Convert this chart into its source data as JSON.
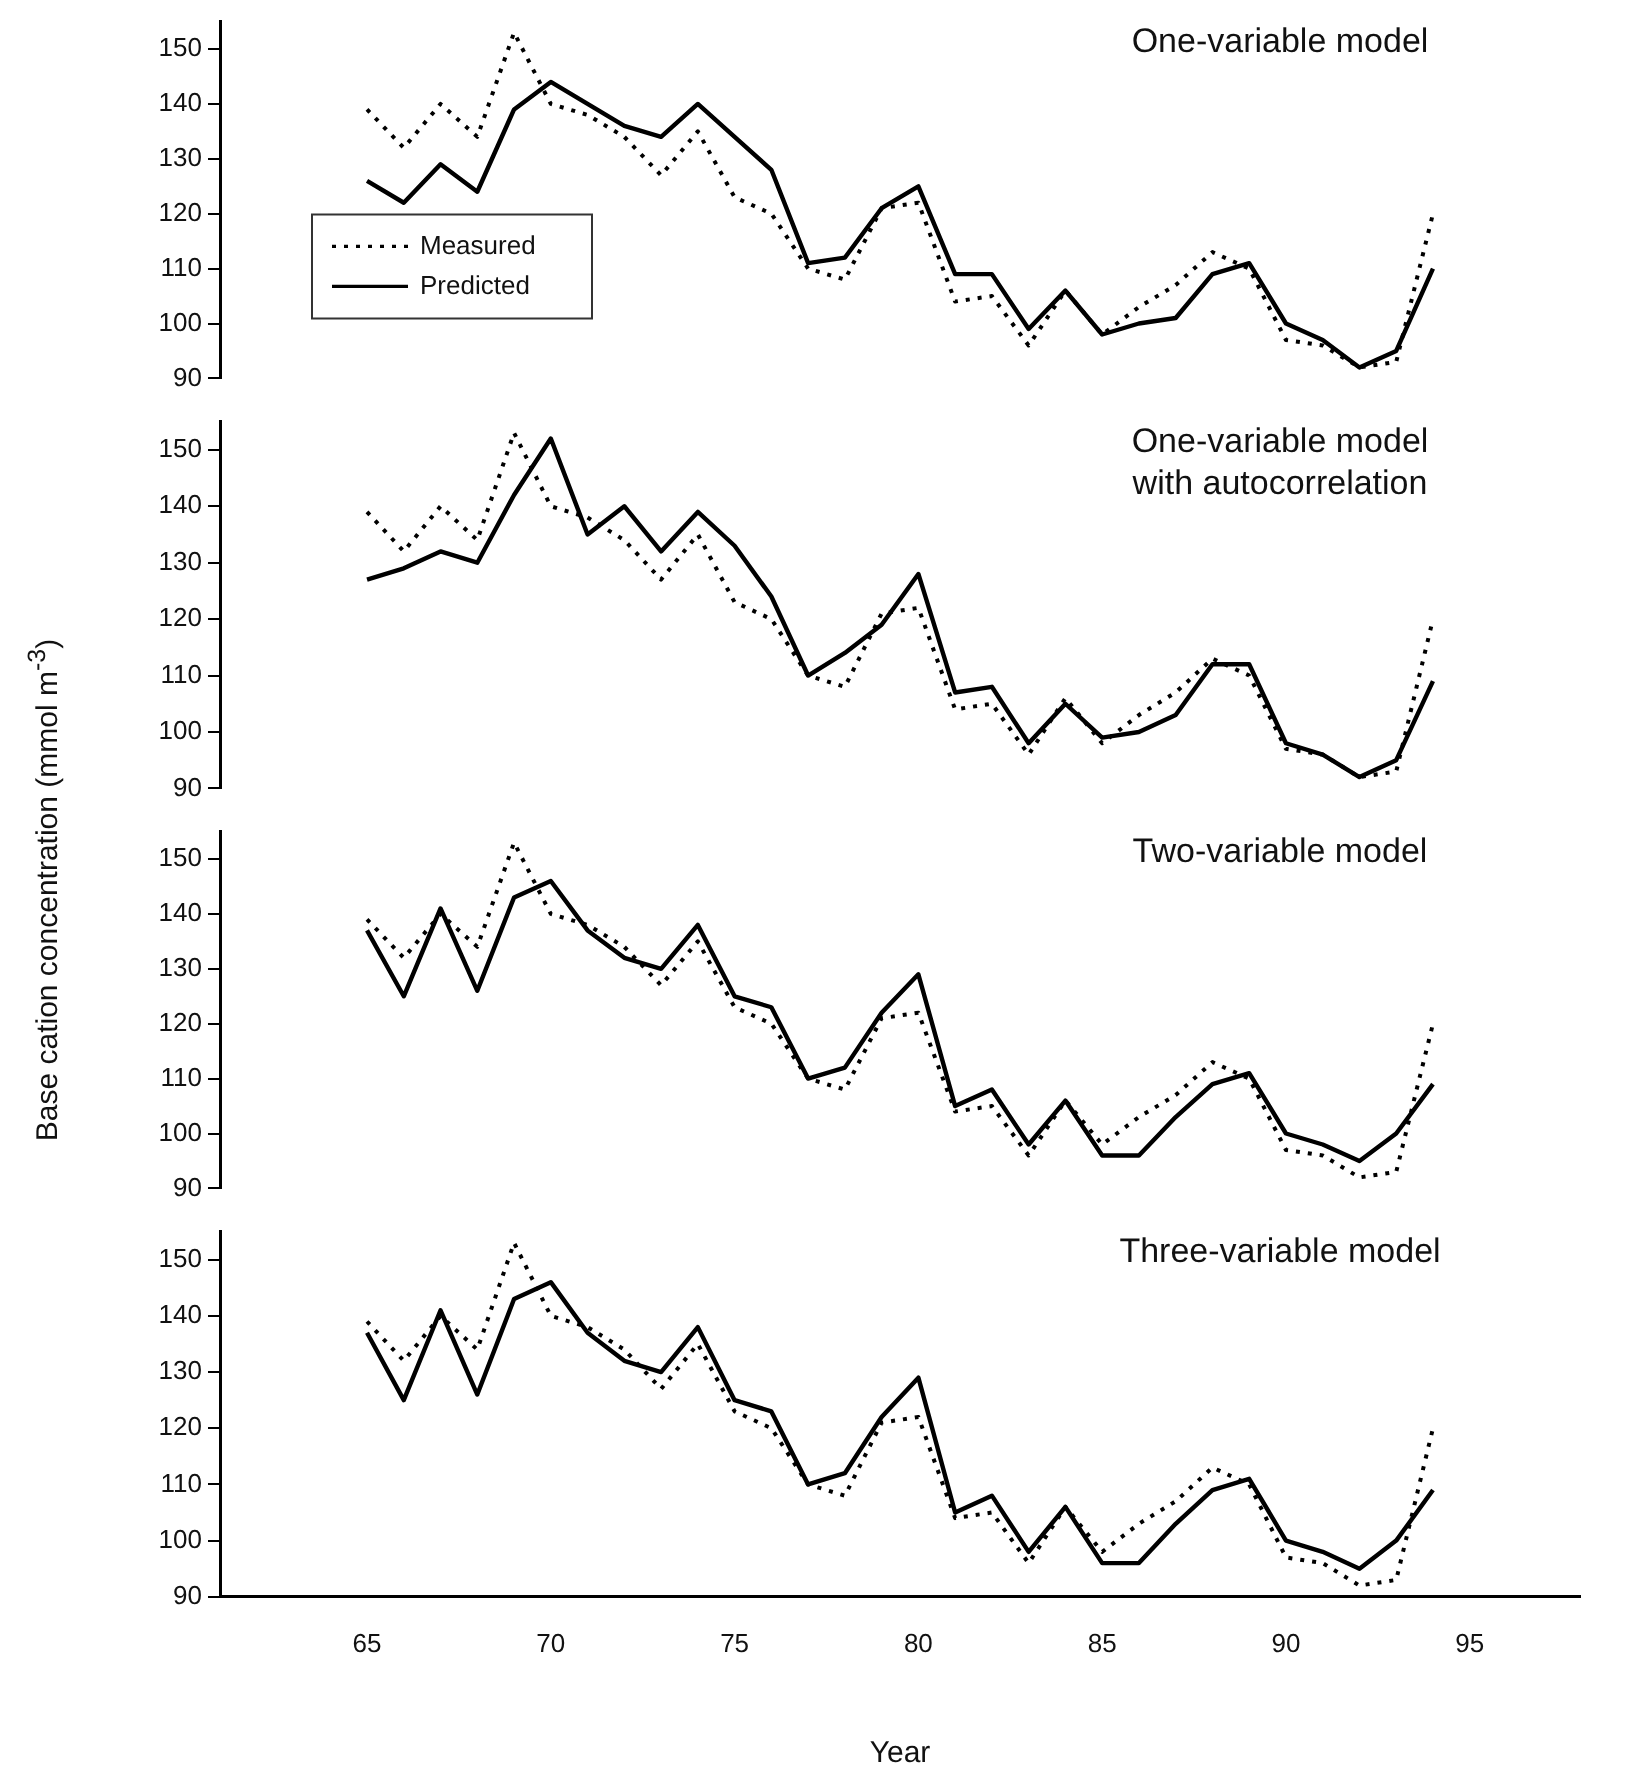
{
  "chart_data": [
    {
      "type": "line",
      "title": "One-variable model",
      "x": [
        65,
        66,
        67,
        68,
        69,
        70,
        71,
        72,
        73,
        74,
        75,
        76,
        77,
        78,
        79,
        80,
        81,
        82,
        83,
        84,
        85,
        86,
        87,
        88,
        89,
        90,
        91,
        92,
        93,
        94
      ],
      "ylim": [
        90,
        155
      ],
      "yticks": [
        90,
        100,
        110,
        120,
        130,
        140,
        150
      ],
      "tick_labels": "y",
      "legend": "bottom left",
      "marker": "none",
      "grid": false,
      "series": [
        {
          "name": "Measured",
          "color": "#000000",
          "line_style": "dotted",
          "values": [
            139,
            132,
            140,
            134,
            153,
            140,
            138,
            134,
            127,
            135,
            123,
            120,
            110,
            108,
            121,
            122,
            104,
            105,
            96,
            106,
            98,
            103,
            107,
            113,
            110,
            97,
            96,
            92,
            93,
            120
          ]
        },
        {
          "name": "Predicted",
          "color": "#000000",
          "line_style": "solid",
          "values": [
            126,
            122,
            129,
            124,
            139,
            144,
            140,
            136,
            134,
            140,
            134,
            128,
            111,
            112,
            121,
            125,
            109,
            109,
            99,
            106,
            98,
            100,
            101,
            109,
            111,
            100,
            97,
            92,
            95,
            110
          ]
        }
      ]
    },
    {
      "type": "line",
      "title": "One-variable model\nwith autocorrelation",
      "x": [
        65,
        66,
        67,
        68,
        69,
        70,
        71,
        72,
        73,
        74,
        75,
        76,
        77,
        78,
        79,
        80,
        81,
        82,
        83,
        84,
        85,
        86,
        87,
        88,
        89,
        90,
        91,
        92,
        93,
        94
      ],
      "ylim": [
        90,
        155
      ],
      "yticks": [
        90,
        100,
        110,
        120,
        130,
        140,
        150
      ],
      "tick_labels": "y",
      "legend": false,
      "marker": "none",
      "grid": false,
      "series": [
        {
          "color": "#000000",
          "line_style": "dotted",
          "values": [
            139,
            132,
            140,
            134,
            153,
            140,
            138,
            134,
            127,
            135,
            123,
            120,
            110,
            108,
            121,
            122,
            104,
            105,
            96,
            106,
            98,
            103,
            107,
            113,
            110,
            97,
            96,
            92,
            93,
            120
          ]
        },
        {
          "color": "#000000",
          "line_style": "solid",
          "values": [
            127,
            129,
            132,
            130,
            142,
            152,
            135,
            140,
            132,
            139,
            133,
            124,
            110,
            114,
            119,
            128,
            107,
            108,
            98,
            105,
            99,
            100,
            103,
            112,
            112,
            98,
            96,
            92,
            95,
            109
          ]
        }
      ]
    },
    {
      "type": "line",
      "title": "Two-variable model",
      "ylabel": "Base cation concentration (mmol m$^{-3}$)",
      "x": [
        65,
        66,
        67,
        68,
        69,
        70,
        71,
        72,
        73,
        74,
        75,
        76,
        77,
        78,
        79,
        80,
        81,
        82,
        83,
        84,
        85,
        86,
        87,
        88,
        89,
        90,
        91,
        92,
        93,
        94
      ],
      "ylim": [
        90,
        155
      ],
      "yticks": [
        90,
        100,
        110,
        120,
        130,
        140,
        150
      ],
      "tick_labels": "y",
      "legend": false,
      "marker": "none",
      "grid": false,
      "series": [
        {
          "color": "#000000",
          "line_style": "dotted",
          "values": [
            139,
            132,
            140,
            134,
            153,
            140,
            138,
            134,
            127,
            135,
            123,
            120,
            110,
            108,
            121,
            122,
            104,
            105,
            96,
            106,
            98,
            103,
            107,
            113,
            110,
            97,
            96,
            92,
            93,
            120
          ]
        },
        {
          "color": "#000000",
          "line_style": "solid",
          "values": [
            137,
            125,
            141,
            126,
            143,
            146,
            137,
            132,
            130,
            138,
            125,
            123,
            110,
            112,
            122,
            129,
            105,
            108,
            98,
            106,
            96,
            96,
            103,
            109,
            111,
            100,
            98,
            95,
            100,
            109
          ]
        }
      ]
    },
    {
      "type": "line",
      "title": "Three-variable model",
      "xlabel": "Year",
      "x": [
        65,
        66,
        67,
        68,
        69,
        70,
        71,
        72,
        73,
        74,
        75,
        76,
        77,
        78,
        79,
        80,
        81,
        82,
        83,
        84,
        85,
        86,
        87,
        88,
        89,
        90,
        91,
        92,
        93,
        94
      ],
      "xlim": [
        61,
        98
      ],
      "xticks": [
        65,
        70,
        75,
        80,
        85,
        90,
        95
      ],
      "ylim": [
        90,
        155
      ],
      "yticks": [
        90,
        100,
        110,
        120,
        130,
        140,
        150
      ],
      "legend": false,
      "marker": "none",
      "grid": false,
      "series": [
        {
          "color": "#000000",
          "line_style": "dotted",
          "values": [
            139,
            132,
            140,
            134,
            153,
            140,
            138,
            134,
            127,
            135,
            123,
            120,
            110,
            108,
            121,
            122,
            104,
            105,
            96,
            106,
            98,
            103,
            107,
            113,
            110,
            97,
            96,
            92,
            93,
            120
          ]
        },
        {
          "color": "#000000",
          "line_style": "solid",
          "values": [
            137,
            125,
            141,
            126,
            143,
            146,
            137,
            132,
            130,
            138,
            125,
            123,
            110,
            112,
            122,
            129,
            105,
            108,
            98,
            106,
            96,
            96,
            103,
            109,
            111,
            100,
            98,
            95,
            100,
            109
          ]
        }
      ]
    }
  ]
}
